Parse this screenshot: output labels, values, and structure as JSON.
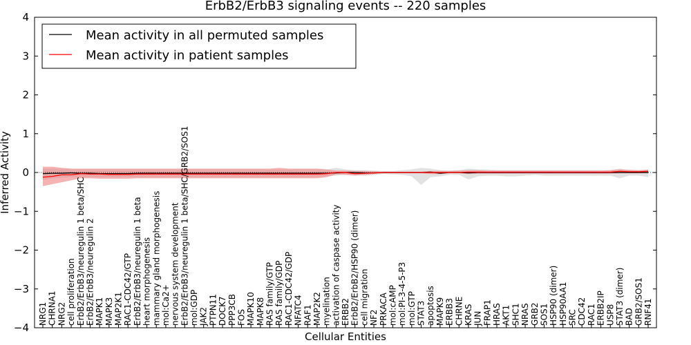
{
  "chart_data": {
    "type": "line",
    "title": "ErbB2/ErbB3 signaling events -- 220 samples",
    "xlabel": "Cellular Entities",
    "ylabel": "Inferred Activity",
    "ylim": [
      -4,
      4
    ],
    "yticks": [
      4,
      3,
      2,
      1,
      0,
      -1,
      -2,
      -3,
      -4
    ],
    "ytick_labels": [
      "4",
      "3",
      "2",
      "1",
      "0",
      "−1",
      "−2",
      "−3",
      "−4"
    ],
    "grid": false,
    "legend_position": "top-left",
    "categories": [
      "NRG1",
      "CHRNA1",
      "NRG2",
      "cell proliferation",
      "ErbB2/ErbB3/neuregulin 1 beta/SHC",
      "ErbB2/ErbB3/neuregulin 2",
      "MAPK1",
      "MAPK3",
      "MAP2K1",
      "RAC1-CDC42/GTP",
      "ErbB2/ErbB3/neuregulin 1 beta",
      "heart morphogenesis",
      "mammary gland morphogenesis",
      "mol:Ca2+",
      "nervous system development",
      "ErbB2/ErbB3/neuregulin 1 beta/SHC/GRB2/SOS1",
      "mol:GDP",
      "JAK2",
      "PTPN11",
      "DOCK7",
      "PPP3CB",
      "FOS",
      "MAPK10",
      "MAPK8",
      "RAS family/GTP",
      "RAS family/GDP",
      "RAC1-CDC42/GDP",
      "NFATC4",
      "RAF1",
      "MAP2K2",
      "myelination",
      "activation of caspase activity",
      "ERBB2",
      "ErbB2/ErbB2/HSP90 (dimer)",
      "cell migration",
      "NF2",
      "PRKACA",
      "mol:cAMP",
      "mol:PI-3-4-5-P3",
      "mol:GTP",
      "STAT3",
      "apoptosis",
      "MAPK9",
      "ERBB3",
      "CHRNE",
      "KRAS",
      "JUN",
      "FRAP1",
      "HRAS",
      "AKT1",
      "SHC1",
      "NRAS",
      "GRB2",
      "SOS1",
      "HSP90 (dimer)",
      "HSP90AA1",
      "SRC",
      "CDC42",
      "RAC1",
      "ERBB2IP",
      "USP8",
      "STAT3 (dimer)",
      "BAD",
      "GRB2/SOS1",
      "RNF41"
    ],
    "series": [
      {
        "name": "Mean activity in all permuted samples",
        "color": "#000000",
        "band_color": "#bfbfbf",
        "values": [
          -0.03,
          -0.02,
          -0.02,
          -0.01,
          -0.02,
          -0.02,
          -0.03,
          -0.03,
          -0.03,
          -0.03,
          -0.02,
          -0.02,
          -0.02,
          -0.02,
          -0.02,
          -0.02,
          -0.02,
          -0.02,
          -0.02,
          -0.02,
          -0.02,
          -0.02,
          -0.02,
          -0.02,
          -0.02,
          -0.02,
          -0.02,
          -0.02,
          -0.02,
          -0.02,
          -0.02,
          -0.01,
          0.0,
          0.0,
          -0.01,
          -0.01,
          0.0,
          0.0,
          0.0,
          0.0,
          0.0,
          0.01,
          -0.02,
          0.0,
          0.0,
          -0.01,
          0.0,
          0.0,
          0.0,
          0.0,
          0.0,
          0.0,
          0.0,
          0.0,
          0.0,
          0.0,
          0.0,
          0.0,
          0.0,
          0.0,
          0.0,
          0.0,
          0.0,
          0.0,
          0.0
        ],
        "lower": [
          -0.2,
          -0.15,
          -0.14,
          -0.12,
          -0.12,
          -0.12,
          -0.12,
          -0.12,
          -0.12,
          -0.12,
          -0.12,
          -0.12,
          -0.12,
          -0.12,
          -0.12,
          -0.12,
          -0.12,
          -0.12,
          -0.12,
          -0.12,
          -0.12,
          -0.12,
          -0.12,
          -0.12,
          -0.12,
          -0.12,
          -0.12,
          -0.12,
          -0.12,
          -0.12,
          -0.1,
          -0.08,
          -0.05,
          -0.06,
          -0.08,
          -0.06,
          -0.04,
          -0.05,
          -0.06,
          -0.1,
          -0.32,
          -0.12,
          -0.1,
          -0.06,
          -0.06,
          -0.18,
          -0.1,
          -0.08,
          -0.08,
          -0.1,
          -0.1,
          -0.08,
          -0.06,
          -0.08,
          -0.08,
          -0.08,
          -0.08,
          -0.08,
          -0.08,
          -0.08,
          -0.08,
          -0.15,
          -0.08,
          -0.08,
          -0.12
        ],
        "upper": [
          0.1,
          0.1,
          0.1,
          0.08,
          0.08,
          0.08,
          0.08,
          0.08,
          0.08,
          0.08,
          0.08,
          0.08,
          0.08,
          0.08,
          0.08,
          0.08,
          0.08,
          0.08,
          0.08,
          0.08,
          0.08,
          0.08,
          0.08,
          0.08,
          0.08,
          0.08,
          0.08,
          0.08,
          0.08,
          0.08,
          0.08,
          0.12,
          0.08,
          0.06,
          0.06,
          0.05,
          0.04,
          0.04,
          0.06,
          0.08,
          0.12,
          0.1,
          0.06,
          0.05,
          0.06,
          0.1,
          0.08,
          0.08,
          0.06,
          0.06,
          0.06,
          0.06,
          0.06,
          0.06,
          0.06,
          0.06,
          0.06,
          0.06,
          0.06,
          0.06,
          0.06,
          0.1,
          0.06,
          0.06,
          0.08
        ]
      },
      {
        "name": "Mean activity in patient samples",
        "color": "#ff0000",
        "band_color": "#f08080",
        "values": [
          -0.12,
          -0.1,
          -0.06,
          -0.06,
          -0.03,
          -0.04,
          -0.04,
          -0.05,
          -0.05,
          -0.05,
          -0.04,
          -0.04,
          -0.04,
          -0.04,
          -0.04,
          -0.04,
          -0.04,
          -0.04,
          -0.04,
          -0.04,
          -0.04,
          -0.04,
          -0.04,
          -0.04,
          -0.04,
          -0.04,
          -0.04,
          -0.04,
          -0.04,
          -0.04,
          -0.03,
          0.0,
          0.0,
          -0.03,
          -0.02,
          -0.01,
          0.0,
          0.0,
          0.0,
          0.0,
          0.0,
          0.0,
          0.0,
          0.0,
          0.0,
          0.01,
          0.01,
          0.01,
          0.01,
          0.01,
          0.01,
          0.01,
          0.01,
          0.01,
          0.01,
          0.01,
          0.01,
          0.01,
          0.01,
          0.01,
          0.01,
          0.03,
          0.02,
          0.02,
          0.03
        ],
        "lower": [
          -0.35,
          -0.3,
          -0.25,
          -0.2,
          -0.15,
          -0.15,
          -0.16,
          -0.16,
          -0.16,
          -0.16,
          -0.15,
          -0.15,
          -0.15,
          -0.15,
          -0.15,
          -0.15,
          -0.15,
          -0.15,
          -0.15,
          -0.15,
          -0.15,
          -0.15,
          -0.15,
          -0.15,
          -0.15,
          -0.15,
          -0.15,
          -0.15,
          -0.15,
          -0.15,
          -0.12,
          -0.05,
          -0.06,
          -0.08,
          -0.06,
          -0.04,
          -0.02,
          -0.02,
          -0.02,
          -0.02,
          -0.02,
          -0.04,
          -0.04,
          -0.02,
          -0.02,
          -0.04,
          -0.03,
          -0.03,
          -0.03,
          -0.03,
          -0.03,
          -0.03,
          -0.03,
          -0.03,
          -0.03,
          -0.03,
          -0.03,
          -0.03,
          -0.03,
          -0.03,
          -0.03,
          -0.02,
          -0.02,
          -0.02,
          -0.02
        ],
        "upper": [
          0.15,
          0.15,
          0.12,
          0.1,
          0.1,
          0.1,
          0.1,
          0.1,
          0.1,
          0.1,
          0.1,
          0.1,
          0.1,
          0.1,
          0.1,
          0.1,
          0.1,
          0.1,
          0.1,
          0.1,
          0.1,
          0.1,
          0.1,
          0.1,
          0.1,
          0.12,
          0.1,
          0.1,
          0.1,
          0.1,
          0.08,
          0.05,
          0.05,
          0.04,
          0.04,
          0.03,
          0.02,
          0.02,
          0.02,
          0.02,
          0.02,
          0.04,
          0.04,
          0.04,
          0.05,
          0.06,
          0.06,
          0.05,
          0.05,
          0.05,
          0.05,
          0.05,
          0.05,
          0.05,
          0.05,
          0.05,
          0.05,
          0.05,
          0.05,
          0.05,
          0.06,
          0.08,
          0.07,
          0.06,
          0.07
        ]
      }
    ]
  }
}
